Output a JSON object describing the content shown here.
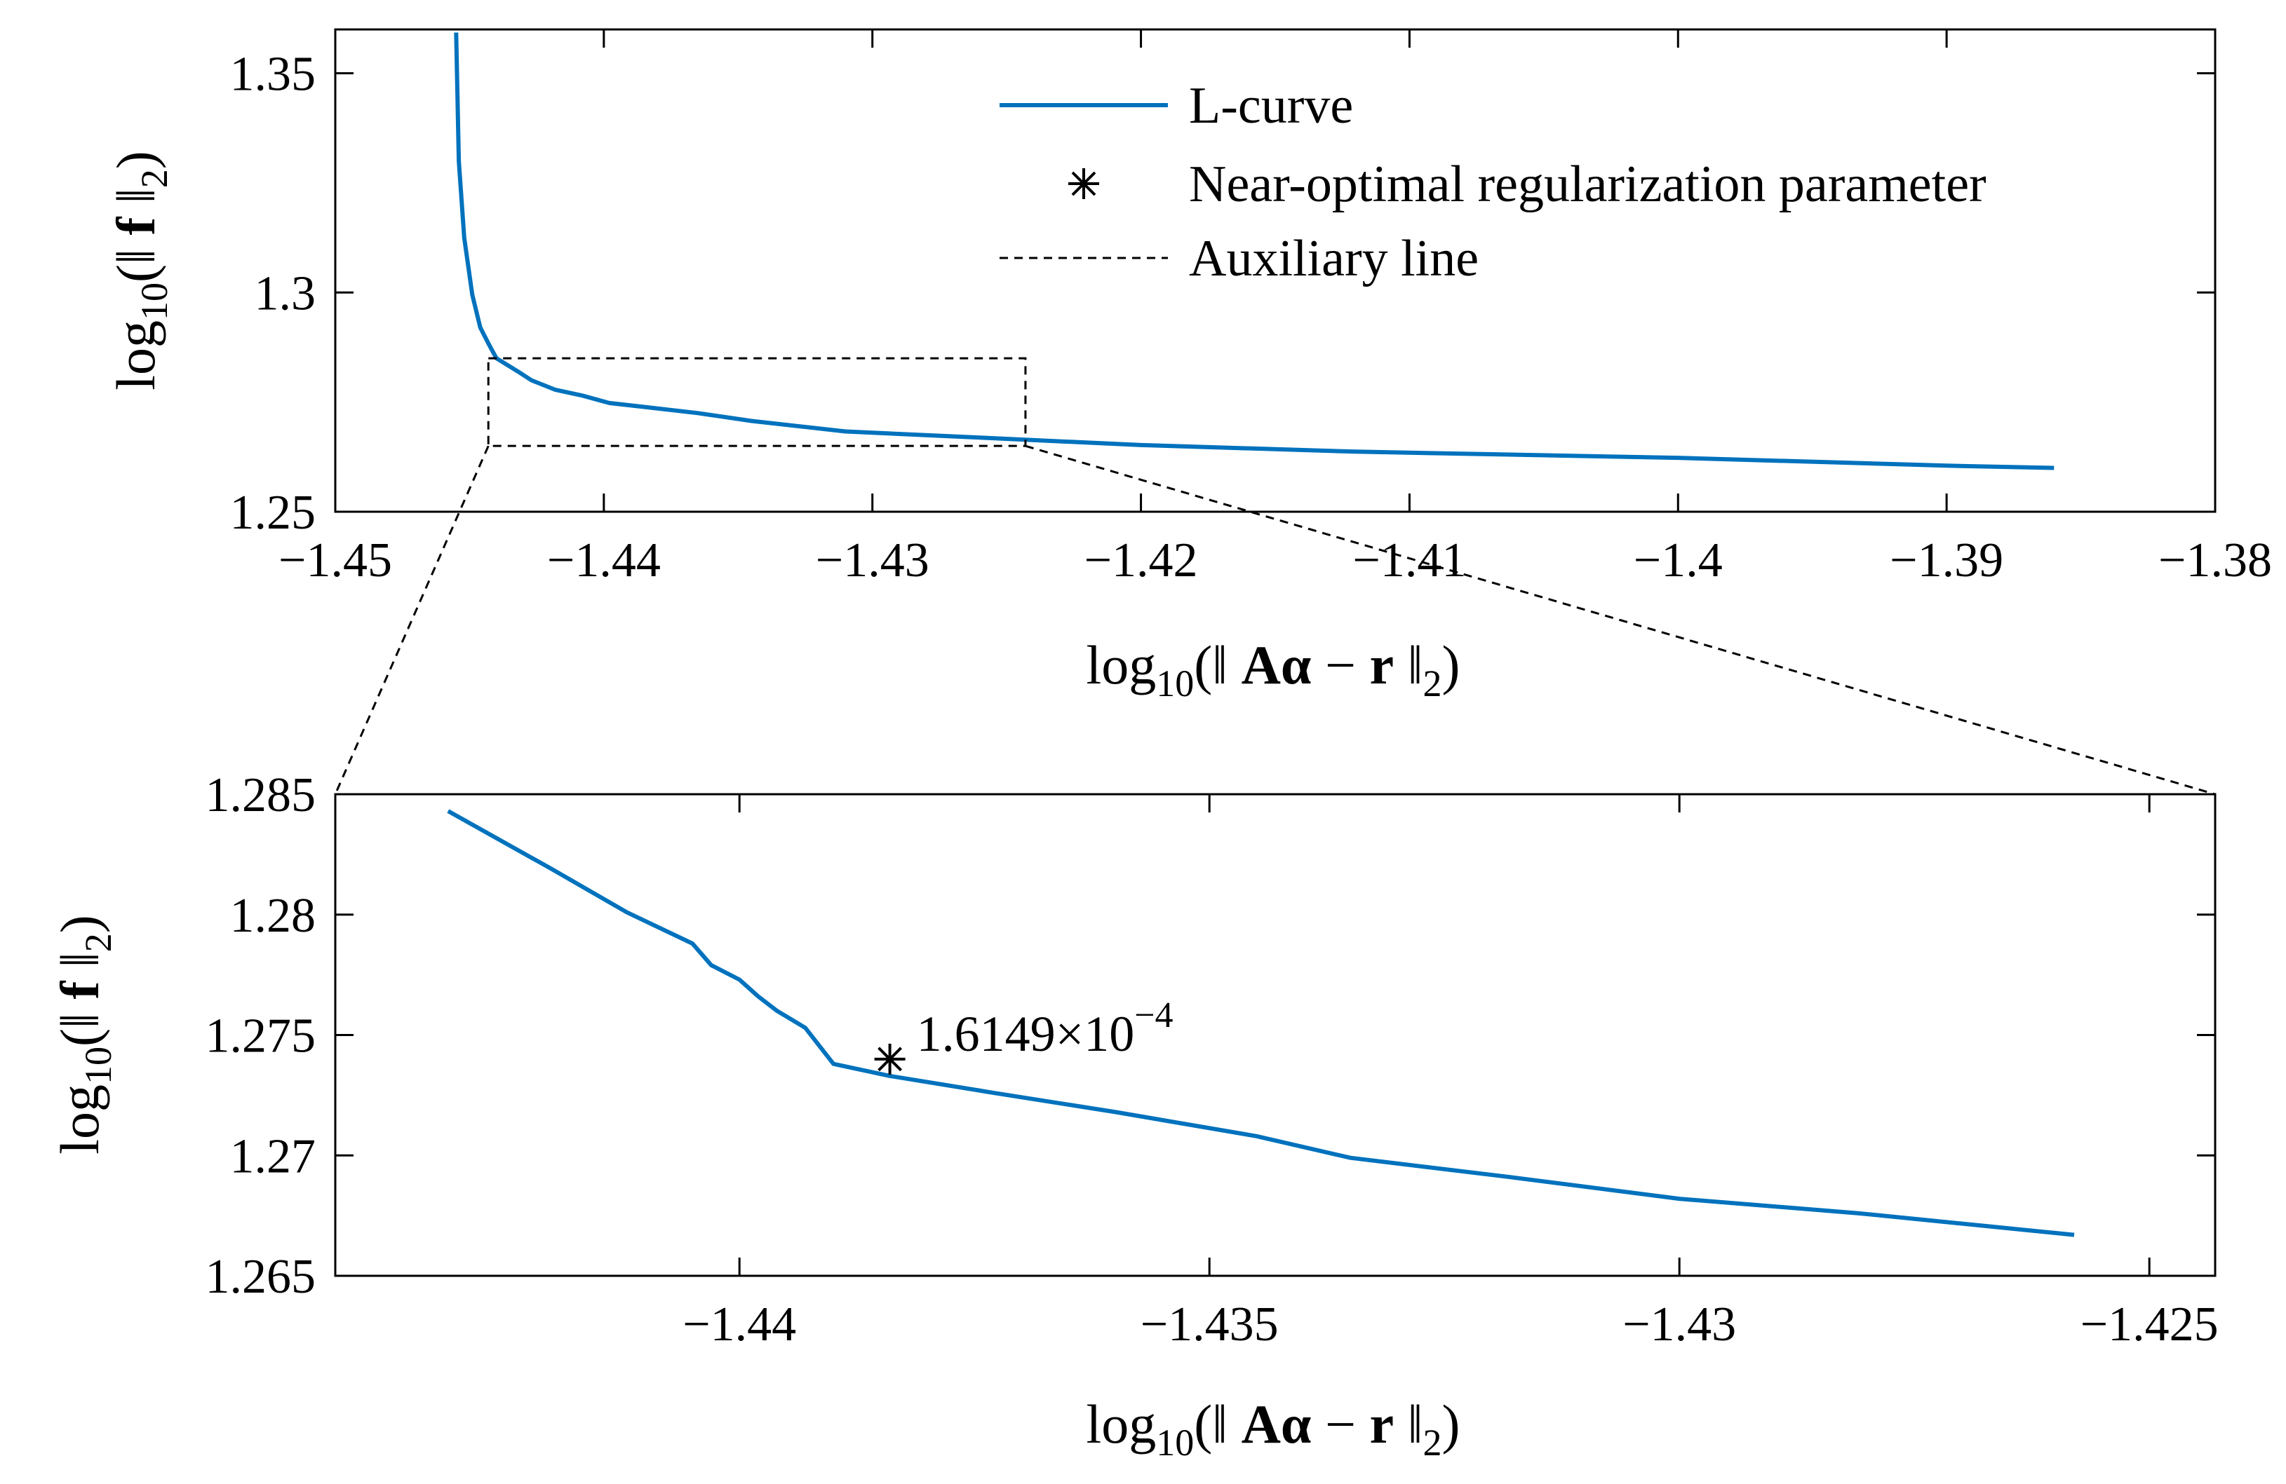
{
  "colors": {
    "curve": "#0072BD",
    "axes": "#000000",
    "background": "#ffffff"
  },
  "chart_data": [
    {
      "type": "line",
      "panel": "overview",
      "xlabel": "log10(‖ Aα − r ‖2)",
      "ylabel": "log10(‖ f ‖2)",
      "xlim": [
        -1.45,
        -1.38
      ],
      "ylim": [
        1.25,
        1.36
      ],
      "xticks": [
        -1.45,
        -1.44,
        -1.43,
        -1.42,
        -1.41,
        -1.4,
        -1.39,
        -1.38
      ],
      "xtick_labels": [
        "−1.45",
        "−1.44",
        "−1.43",
        "−1.42",
        "−1.41",
        "−1.4",
        "−1.39",
        "−1.38"
      ],
      "yticks": [
        1.25,
        1.3,
        1.35
      ],
      "ytick_labels": [
        "1.25",
        "1.3",
        "1.35"
      ],
      "legend": {
        "placement": "top-right",
        "entries": [
          "L-curve",
          "Near-optimal regularization parameter",
          "Auxiliary line"
        ]
      },
      "series": [
        {
          "name": "L-curve",
          "x": [
            -1.4455,
            -1.4454,
            -1.4452,
            -1.4449,
            -1.4446,
            -1.4443,
            -1.444,
            -1.4432,
            -1.4427,
            -1.4418,
            -1.4408,
            -1.4398,
            -1.4385,
            -1.4365,
            -1.4345,
            -1.431,
            -1.426,
            -1.42,
            -1.412,
            -1.4,
            -1.39,
            -1.386
          ],
          "y": [
            1.3593,
            1.33,
            1.3125,
            1.2995,
            1.292,
            1.2884,
            1.285,
            1.282,
            1.28,
            1.2778,
            1.2765,
            1.2748,
            1.2739,
            1.2725,
            1.2707,
            1.2683,
            1.2669,
            1.2652,
            1.2637,
            1.2623,
            1.2605,
            1.26
          ]
        }
      ],
      "zoom_box": {
        "x": [
          -1.4443,
          -1.4243
        ],
        "y": [
          1.265,
          1.285
        ]
      }
    },
    {
      "type": "line",
      "panel": "zoom",
      "xlabel": "log10(‖ Aα − r ‖2)",
      "ylabel": "log10(‖ f ‖2)",
      "xlim": [
        -1.4443,
        -1.4243
      ],
      "ylim": [
        1.265,
        1.285
      ],
      "xticks": [
        -1.44,
        -1.435,
        -1.43,
        -1.425
      ],
      "xtick_labels": [
        "−1.44",
        "−1.435",
        "−1.43",
        "−1.425"
      ],
      "yticks": [
        1.265,
        1.27,
        1.275,
        1.28,
        1.285
      ],
      "ytick_labels": [
        "1.265",
        "1.27",
        "1.275",
        "1.28",
        "1.285"
      ],
      "series": [
        {
          "name": "L-curve",
          "x": [
            -1.4431,
            -1.442,
            -1.4412,
            -1.4405,
            -1.4403,
            -1.44,
            -1.4398,
            -1.4396,
            -1.4393,
            -1.439,
            -1.4384,
            -1.4373,
            -1.436,
            -1.4345,
            -1.4335,
            -1.4318,
            -1.43,
            -1.4281,
            -1.4258
          ],
          "y": [
            1.2843,
            1.2819,
            1.2801,
            1.2788,
            1.2779,
            1.2773,
            1.2766,
            1.276,
            1.2753,
            1.2738,
            1.2733,
            1.2726,
            1.2718,
            1.2708,
            1.2699,
            1.2691,
            1.2682,
            1.2676,
            1.2667
          ]
        }
      ],
      "marker": {
        "name": "Near-optimal regularization parameter",
        "x": -1.4384,
        "y": 1.274,
        "symbol": "*"
      },
      "annotation": {
        "text": "1.6149×10",
        "exponent": "−4",
        "x": -1.4384,
        "y": 1.274
      }
    }
  ]
}
